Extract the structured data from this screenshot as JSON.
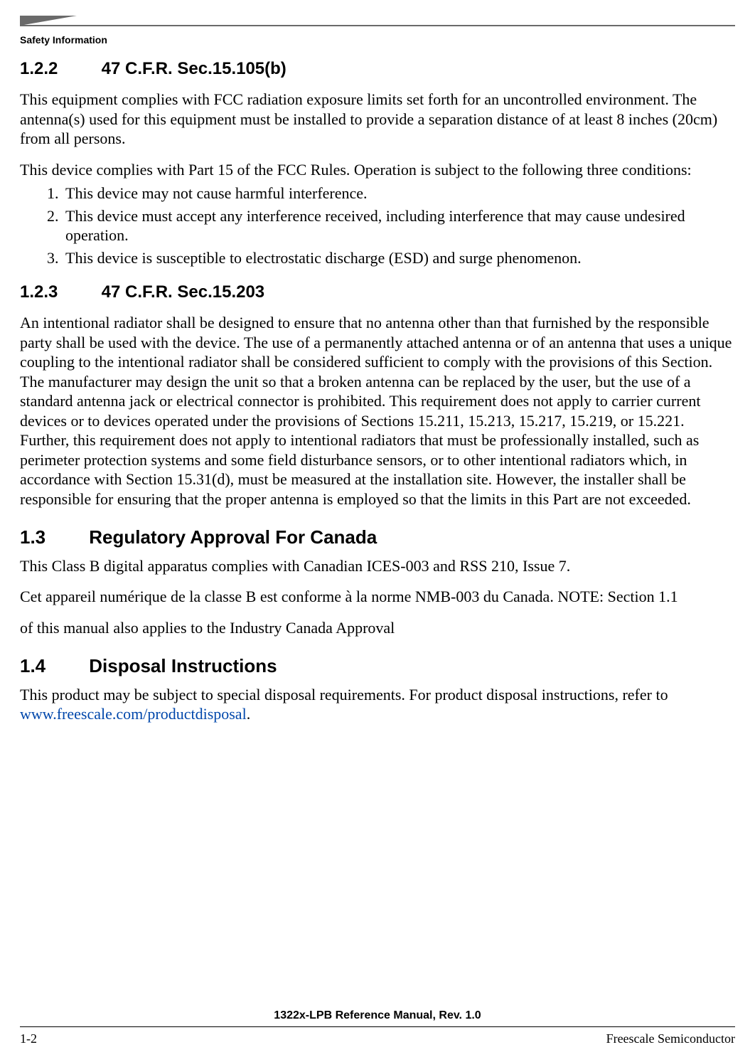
{
  "header": {
    "running_head": "Safety Information",
    "decor_color": "#6a6a6a"
  },
  "sections": {
    "s122": {
      "number": "1.2.2",
      "title": "47 C.F.R. Sec.15.105(b)",
      "p1": "This equipment complies with FCC radiation exposure limits set forth for an uncontrolled environment. The antenna(s) used for this equipment must be installed to provide a separation distance of at least 8 inches (20cm) from all persons.",
      "p2": "This device complies with Part 15 of the FCC Rules.  Operation is subject to the following three conditions:",
      "conditions": [
        "This device may not cause harmful interference.",
        "This device must accept any interference received, including interference that may cause undesired operation.",
        "This device is susceptible to electrostatic discharge (ESD) and surge phenomenon."
      ]
    },
    "s123": {
      "number": "1.2.3",
      "title": "47 C.F.R. Sec.15.203",
      "p1": "An intentional radiator shall be designed to ensure that no antenna other than that furnished by the responsible party shall be used with the device.  The use of a permanently attached antenna or of an antenna that uses a unique coupling to the intentional radiator shall be considered sufficient to comply with the provisions of this Section.  The manufacturer may design the unit so that a broken antenna can be replaced by the user, but the use of a standard antenna jack or electrical connector is prohibited.  This requirement does not apply to carrier current devices or to devices operated under the provisions of Sections 15.211, 15.213, 15.217, 15.219, or 15.221.  Further, this requirement does not apply to intentional radiators that must be professionally installed, such as perimeter protection systems and some field disturbance sensors, or to other intentional radiators which, in accordance with Section 15.31(d), must be measured at the installation site.  However, the installer shall be responsible for ensuring that the proper antenna is employed so that the limits in this Part are not exceeded."
    },
    "s13": {
      "number": "1.3",
      "title": "Regulatory Approval For Canada",
      "p1": "This Class B digital apparatus complies with Canadian ICES-003 and RSS 210, Issue 7.",
      "p2": "Cet appareil numérique de la classe B est conforme à la norme NMB-003 du Canada.  NOTE:  Section 1.1",
      "p3": "of this manual also applies to the Industry Canada Approval"
    },
    "s14": {
      "number": "1.4",
      "title": "Disposal Instructions",
      "p1_pre": "This product may be subject to special disposal requirements. For product disposal instructions, refer to ",
      "link_text": "www.freescale.com/productdisposal",
      "p1_post": "."
    }
  },
  "footer": {
    "doc_title": "1322x-LPB Reference Manual, Rev. 1.0",
    "page_number": "1-2",
    "company": "Freescale Semiconductor"
  },
  "style": {
    "link_color": "#0047ab",
    "body_text_color": "#000000",
    "background_color": "#ffffff",
    "body_font_size_pt": 16,
    "heading_font_family": "Arial",
    "body_font_family": "Times New Roman"
  }
}
